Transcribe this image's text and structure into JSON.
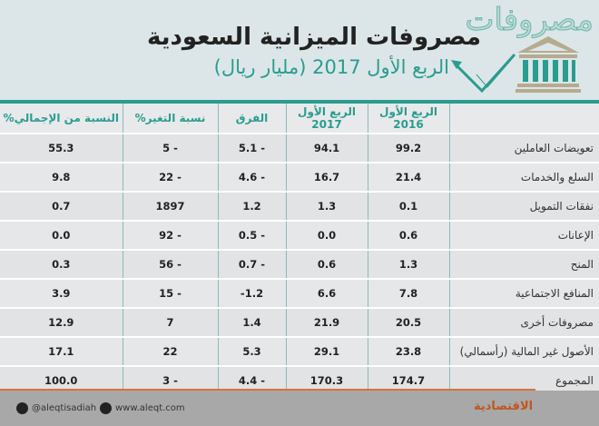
{
  "header": {
    "ghost_word": "مصروفات",
    "title": "مصروفات الميزانية السعودية",
    "subtitle": "الربع الأول 2017 (مليار ريال)"
  },
  "table": {
    "columns": [
      "",
      "الربع الأول 2016",
      "الربع الأول 2017",
      "الفرق",
      "نسبة التغير%",
      "النسبة من الإجمالي%"
    ],
    "rows": [
      [
        "تعويضات العاملين",
        "99.2",
        "94.1",
        "5.1 -",
        "5 -",
        "55.3"
      ],
      [
        "السلع والخدمات",
        "21.4",
        "16.7",
        "4.6 -",
        "22 -",
        "9.8"
      ],
      [
        "نفقات التمويل",
        "0.1",
        "1.3",
        "1.2",
        "1897",
        "0.7"
      ],
      [
        "الإعانات",
        "0.6",
        "0.0",
        "0.5 -",
        "92 -",
        "0.0"
      ],
      [
        "المنح",
        "1.3",
        "0.6",
        "0.7 -",
        "56 -",
        "0.3"
      ],
      [
        "المنافع الاجتماعية",
        "7.8",
        "6.6",
        "-1.2",
        "15 -",
        "3.9"
      ],
      [
        "مصروفات أخرى",
        "20.5",
        "21.9",
        "1.4",
        "7",
        "12.9"
      ],
      [
        "الأصول غير المالية (رأسمالي)",
        "23.8",
        "29.1",
        "5.3",
        "22",
        "17.1"
      ],
      [
        "المجموع",
        "174.7",
        "170.3",
        "4.4 -",
        "3 -",
        "100.0"
      ]
    ]
  },
  "footer": {
    "twitter": "@aleqtisadiah",
    "website": "www.aleqt.com",
    "logo": "الاقتصادية"
  },
  "colors": {
    "teal": "#2a9c90",
    "orange": "#d6733a",
    "footer": "#a8a8a8"
  }
}
